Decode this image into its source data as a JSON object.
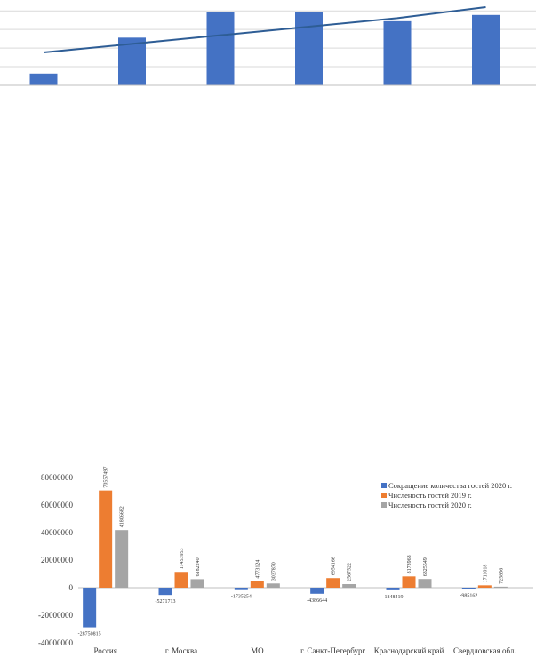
{
  "chart_data": [
    {
      "type": "bar",
      "categories": [
        "",
        "",
        "",
        "",
        "",
        ""
      ],
      "values": [
        15,
        61,
        94,
        94,
        82,
        90
      ],
      "trendline": [
        42,
        53,
        64,
        75,
        86,
        100
      ],
      "ylim": [
        0,
        100
      ],
      "grid": true,
      "colors": {
        "bar": "#4472C4",
        "line": "#2E5D95",
        "grid": "#D9D9D9"
      }
    },
    {
      "type": "bar",
      "categories": [
        "Россия",
        "г. Москва",
        "МО",
        "г. Санкт-Петербург",
        "Краснодарский край",
        "Свердловская обл."
      ],
      "ylim": [
        -40000000,
        80000000
      ],
      "yticks": [
        80000000,
        60000000,
        40000000,
        20000000,
        0,
        -20000000,
        -40000000
      ],
      "legend_position": "top-right",
      "series": [
        {
          "name": "Сокращение количества гостей 2020 г.",
          "color": "#4472C4",
          "values": [
            -28750815,
            -5271713,
            -1735254,
            -4386644,
            -1848419,
            -985162
          ],
          "labels": [
            "-28750815",
            "-5271713",
            "-1735254",
            "-4386644",
            "-1848419",
            "-985162"
          ]
        },
        {
          "name": "Численость гостей 2019 г.",
          "color": "#ED7D31",
          "values": [
            70557497,
            11453953,
            4773124,
            6954166,
            8173968,
            1711018
          ],
          "labels": [
            "70557497",
            "11453953",
            "4773124",
            "6954166",
            "8173968",
            "1711018"
          ]
        },
        {
          "name": "Численость гостей 2020 г.",
          "color": "#A5A5A5",
          "values": [
            41806682,
            6182240,
            3037870,
            2567522,
            6325549,
            725856
          ],
          "labels": [
            "41806682",
            "6182240",
            "3037870",
            "2567522",
            "6325549",
            "725856"
          ]
        }
      ]
    }
  ]
}
